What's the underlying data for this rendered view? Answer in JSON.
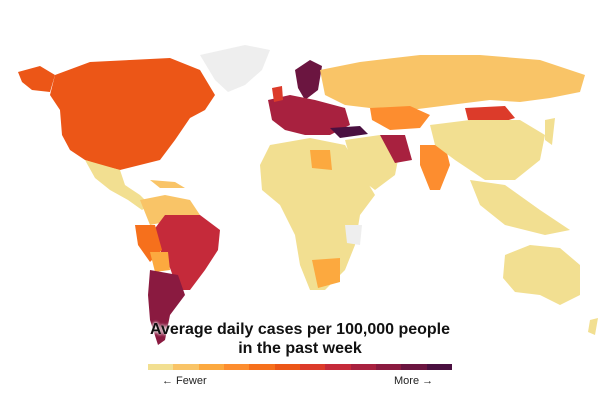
{
  "title_line1": "Average daily cases per 100,000 people",
  "title_line2": "in the past week",
  "legend": {
    "fewer_label": "← Fewer",
    "more_label": "More →",
    "colors": [
      "#f2df91",
      "#f9c467",
      "#fca93f",
      "#fd8d2f",
      "#f6701c",
      "#ec5617",
      "#dc3b2a",
      "#c52a3a",
      "#a8213f",
      "#8a1a40",
      "#6b1540",
      "#4a1040"
    ]
  },
  "no_data_color": "#eeeeee"
}
